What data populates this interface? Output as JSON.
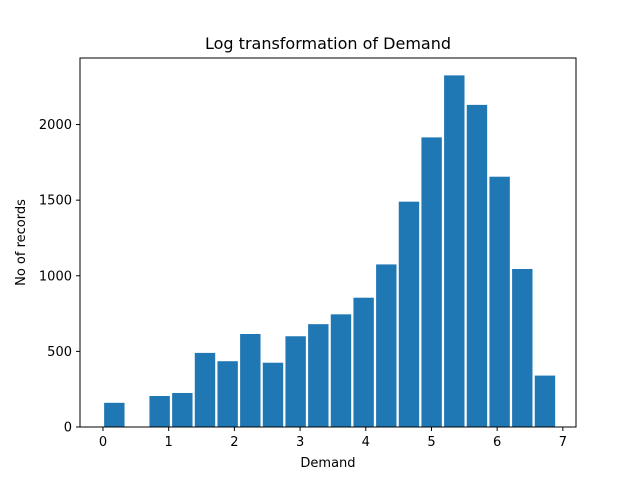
{
  "chart_data": {
    "type": "bar",
    "title": "Log transformation of Demand",
    "xlabel": "Demand",
    "ylabel": "No of records",
    "xlim": [
      -0.35,
      7.2
    ],
    "ylim": [
      0,
      2440
    ],
    "xticks": [
      0,
      1,
      2,
      3,
      4,
      5,
      6,
      7
    ],
    "yticks": [
      0,
      500,
      1000,
      1500,
      2000
    ],
    "bin_edges": [
      0,
      0.345,
      0.69,
      1.035,
      1.38,
      1.725,
      2.07,
      2.415,
      2.76,
      3.105,
      3.45,
      3.795,
      4.14,
      4.485,
      4.83,
      5.175,
      5.52,
      5.865,
      6.21,
      6.555,
      6.9
    ],
    "values": [
      160,
      0,
      205,
      225,
      490,
      435,
      615,
      425,
      600,
      680,
      745,
      855,
      1075,
      1490,
      1915,
      2325,
      2130,
      1655,
      1045,
      340
    ],
    "color": "#1f77b4",
    "rwidth": 0.9,
    "grid": false,
    "legend": "none"
  }
}
